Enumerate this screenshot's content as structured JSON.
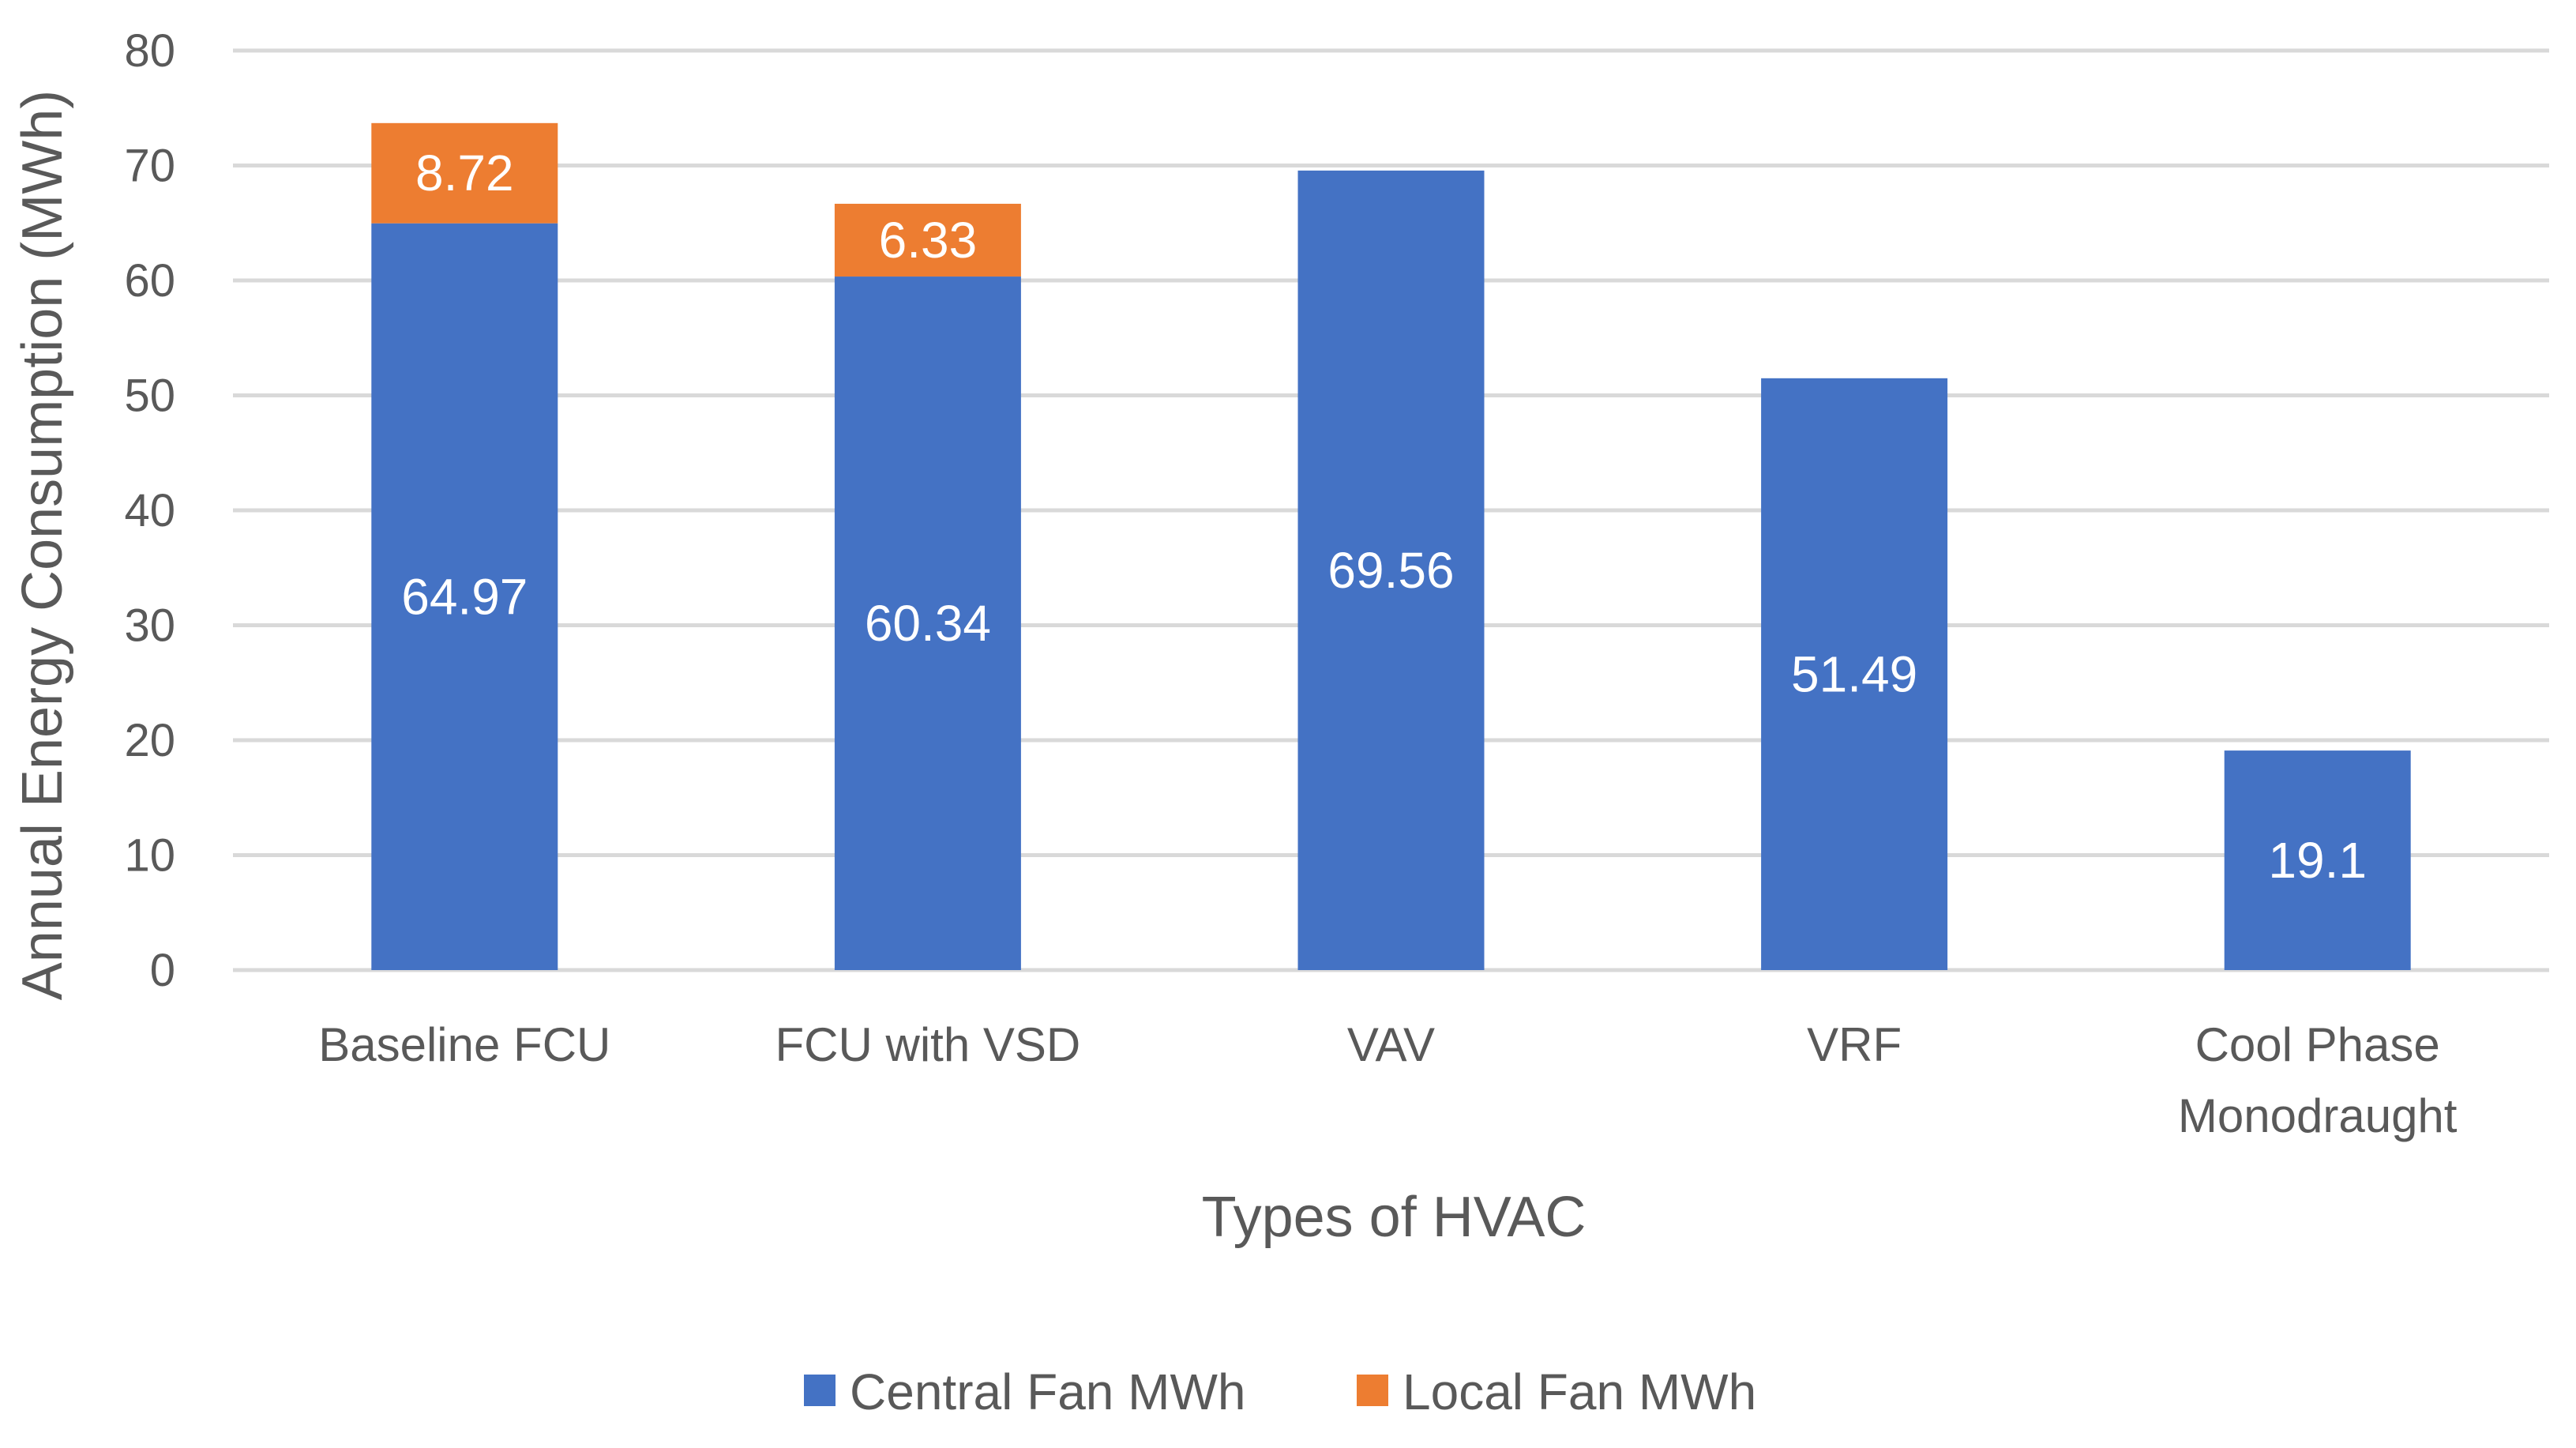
{
  "chart_data": {
    "type": "bar",
    "stacked": true,
    "title": "",
    "xlabel": "Types of HVAC",
    "ylabel": "Annual Energy Consumption (MWh)",
    "ylim": [
      0,
      80
    ],
    "yticks": [
      0,
      10,
      20,
      30,
      40,
      50,
      60,
      70,
      80
    ],
    "grid": true,
    "legend_position": "bottom",
    "categories": [
      [
        "Baseline FCU"
      ],
      [
        "FCU with VSD"
      ],
      [
        "VAV"
      ],
      [
        "VRF"
      ],
      [
        "Cool Phase",
        "Monodraught"
      ]
    ],
    "series": [
      {
        "name": "Central Fan MWh",
        "color": "#4472c4",
        "values": [
          64.97,
          60.34,
          69.56,
          51.49,
          19.1
        ],
        "labels": [
          "64.97",
          "60.34",
          "69.56",
          "51.49",
          "19.1"
        ]
      },
      {
        "name": "Local Fan MWh",
        "color": "#ed7d31",
        "values": [
          8.72,
          6.33,
          null,
          null,
          null
        ],
        "labels": [
          "8.72",
          "6.33",
          null,
          null,
          null
        ]
      }
    ]
  }
}
